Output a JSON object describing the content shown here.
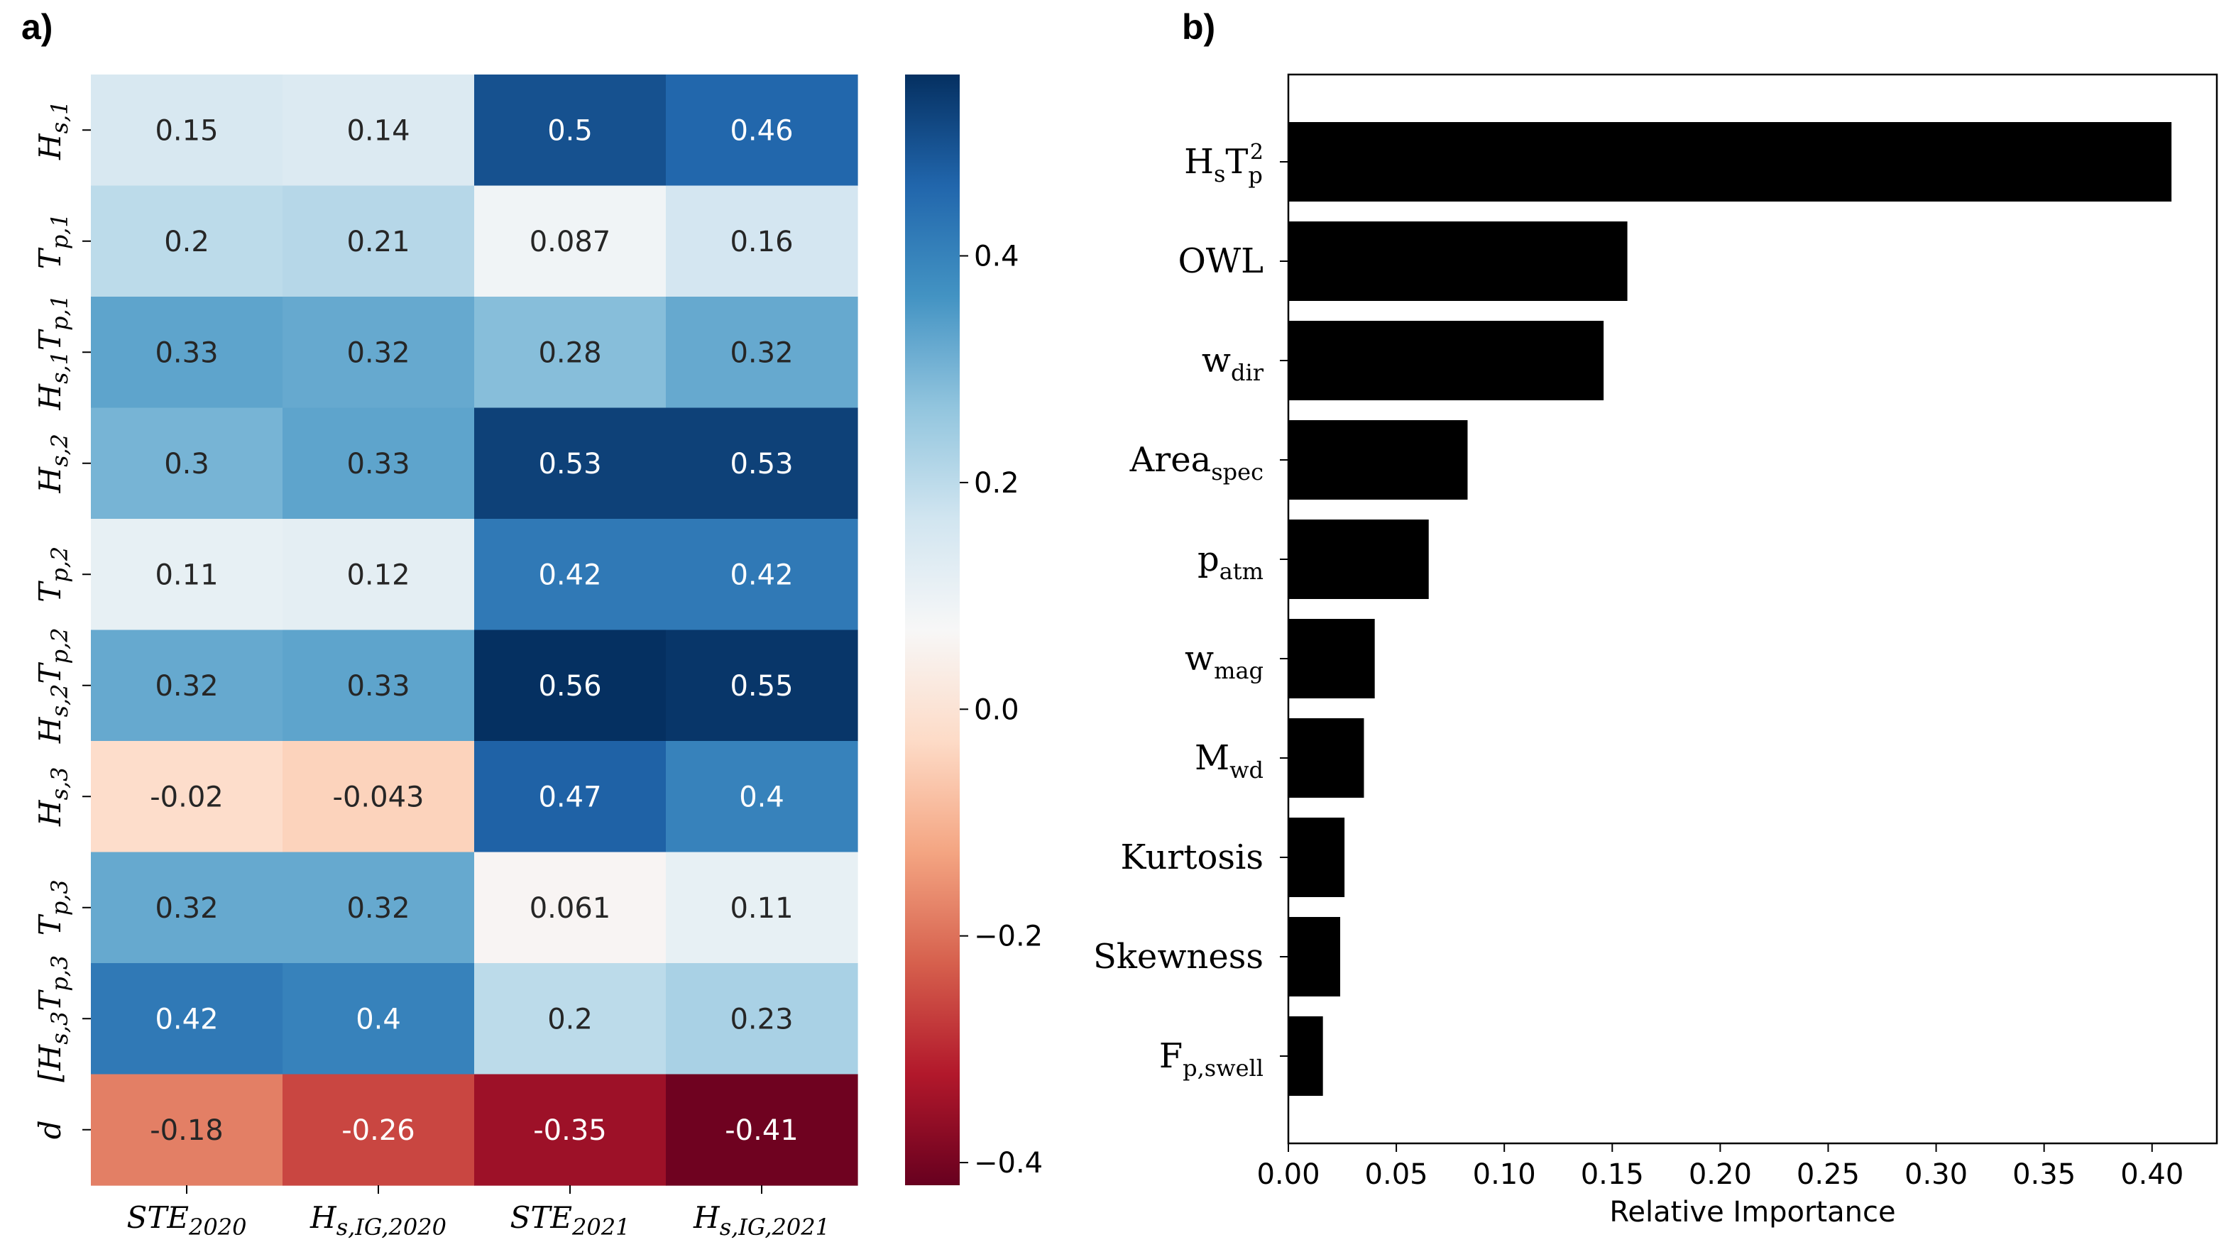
{
  "panels": {
    "a_label": "a)",
    "b_label": "b)"
  },
  "chart_data": [
    {
      "type": "heatmap",
      "panel": "a)",
      "colormap": "RdBu",
      "vmin": -0.42,
      "vmax": 0.56,
      "rows": [
        {
          "base": "H",
          "sub": "s,1"
        },
        {
          "base": "T",
          "sub": "p,1"
        },
        {
          "base": "H",
          "sub": "s,1",
          "base2": "T",
          "sub2": "p,1"
        },
        {
          "base": "H",
          "sub": "s,2"
        },
        {
          "base": "T",
          "sub": "p,2"
        },
        {
          "base": "H",
          "sub": "s,2",
          "base2": "T",
          "sub2": "p,2"
        },
        {
          "base": "H",
          "sub": "s,3"
        },
        {
          "base": "T",
          "sub": "p,3"
        },
        {
          "prefix": "[",
          "base": "H",
          "sub": "s,3",
          "base2": "T",
          "sub2": "p,3"
        },
        {
          "base": "d"
        }
      ],
      "columns": [
        {
          "base": "STE",
          "sub": "2020"
        },
        {
          "base": "H",
          "sub": "s,IG,2020"
        },
        {
          "base": "STE",
          "sub": "2021"
        },
        {
          "base": "H",
          "sub": "s,IG,2021"
        }
      ],
      "values": [
        [
          0.15,
          0.14,
          0.5,
          0.46
        ],
        [
          0.2,
          0.21,
          0.087,
          0.16
        ],
        [
          0.33,
          0.32,
          0.28,
          0.32
        ],
        [
          0.3,
          0.33,
          0.53,
          0.53
        ],
        [
          0.11,
          0.12,
          0.42,
          0.42
        ],
        [
          0.32,
          0.33,
          0.56,
          0.55
        ],
        [
          -0.02,
          -0.043,
          0.47,
          0.4
        ],
        [
          0.32,
          0.32,
          0.061,
          0.11
        ],
        [
          0.42,
          0.4,
          0.2,
          0.23
        ],
        [
          -0.18,
          -0.26,
          -0.35,
          -0.41
        ]
      ],
      "colorbar": {
        "ticks": [
          0.4,
          0.2,
          0.0,
          -0.2,
          -0.4
        ],
        "tick_labels": [
          "0.4",
          "0.2",
          "0.0",
          "−0.2",
          "−0.4"
        ]
      }
    },
    {
      "type": "bar",
      "orientation": "horizontal",
      "panel": "b)",
      "xlabel": "Relative Importance",
      "xlim": [
        0,
        0.43
      ],
      "xticks": [
        0,
        0.05,
        0.1,
        0.15,
        0.2,
        0.25,
        0.3,
        0.35,
        0.4
      ],
      "xtick_labels": [
        "0.00",
        "0.05",
        "0.10",
        "0.15",
        "0.20",
        "0.25",
        "0.30",
        "0.35",
        "0.40"
      ],
      "bar_color": "#000000",
      "categories": [
        {
          "base": "H",
          "sub": "s",
          "base2": "T",
          "sub2": "p",
          "sup2": "2"
        },
        {
          "base": "OWL"
        },
        {
          "base": "w",
          "sub": "dir"
        },
        {
          "base": "Area",
          "sub": "spec"
        },
        {
          "base": "p",
          "sub": "atm"
        },
        {
          "base": "w",
          "sub": "mag"
        },
        {
          "base": "M",
          "sub": "wd"
        },
        {
          "base": "Kurtosis"
        },
        {
          "base": "Skewness"
        },
        {
          "base": "F",
          "sub": "p,swell"
        }
      ],
      "values": [
        0.409,
        0.157,
        0.146,
        0.083,
        0.065,
        0.04,
        0.035,
        0.026,
        0.024,
        0.016
      ]
    }
  ]
}
